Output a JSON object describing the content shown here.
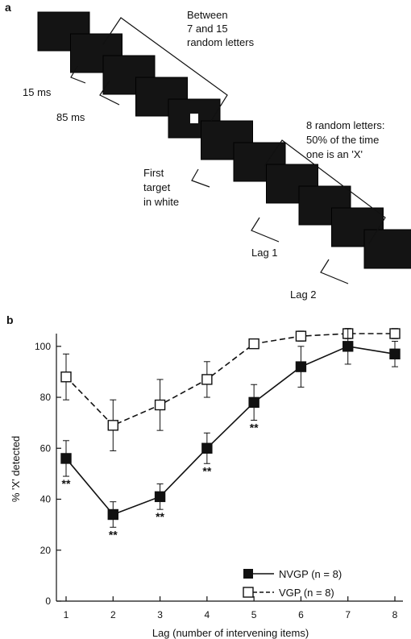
{
  "panel_a": {
    "label": "a",
    "annotations": {
      "between_line1": "Between",
      "between_line2": "7 and 15",
      "between_line3": "random letters",
      "ms15": "15 ms",
      "ms85": "85 ms",
      "eight_line1": "8 random letters:",
      "eight_line2": "50% of the time",
      "eight_line3": "one is an 'X'",
      "first_line1": "First",
      "first_line2": "target",
      "first_line3": "in white",
      "lag1": "Lag 1",
      "lag2": "Lag 2"
    },
    "frame_count": 11,
    "target_frame_index": 4,
    "frame_color": "#141414"
  },
  "panel_b": {
    "label": "b",
    "significance_marker": "**"
  },
  "chart_data": {
    "type": "line",
    "xlabel": "Lag (number of intervening items)",
    "ylabel": "% 'X' detected",
    "x": [
      1,
      2,
      3,
      4,
      5,
      6,
      7,
      8
    ],
    "xlim": [
      1,
      8
    ],
    "ylim": [
      0,
      105
    ],
    "yticks": [
      0,
      20,
      40,
      60,
      80,
      100
    ],
    "grid": false,
    "legend_position": "bottom-right",
    "series": [
      {
        "name": "NVGP (n = 8)",
        "marker": "filled-square",
        "line": "solid",
        "values": [
          56,
          34,
          41,
          60,
          78,
          92,
          100,
          97
        ],
        "errors": [
          7,
          5,
          5,
          6,
          7,
          8,
          7,
          5
        ]
      },
      {
        "name": "VGP (n = 8)",
        "marker": "open-square",
        "line": "dashed",
        "values": [
          88,
          69,
          77,
          87,
          101,
          104,
          105,
          105
        ],
        "errors": [
          9,
          10,
          10,
          7,
          1,
          2,
          2,
          2
        ]
      }
    ],
    "significant_lags": [
      1,
      2,
      3,
      4,
      5
    ]
  }
}
